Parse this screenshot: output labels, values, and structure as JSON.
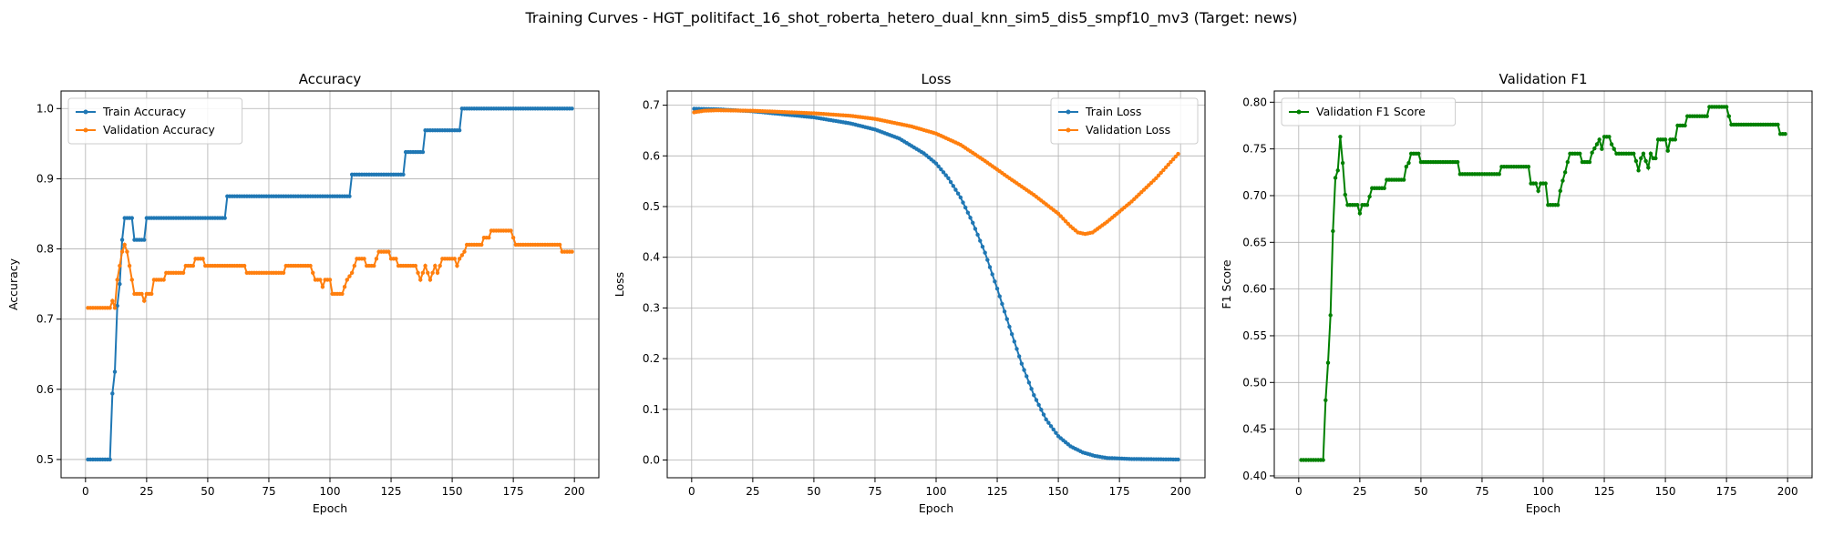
{
  "figure_title": "Training Curves - HGT_politifact_16_shot_roberta_hetero_dual_knn_sim5_dis5_smpf10_mv3 (Target: news)",
  "colors": {
    "train": "#1f77b4",
    "validation": "#ff7f0e",
    "f1": "#008000",
    "grid": "#b0b0b0"
  },
  "chart_data": [
    {
      "type": "line",
      "title": "Accuracy",
      "xlabel": "Epoch",
      "ylabel": "Accuracy",
      "xlim": [
        -10,
        210
      ],
      "ylim": [
        0.474,
        1.025
      ],
      "xticks": [
        0,
        25,
        50,
        75,
        100,
        125,
        150,
        175,
        200
      ],
      "yticks": [
        0.5,
        0.6,
        0.7,
        0.8,
        0.9,
        1.0
      ],
      "ytick_labels": [
        "0.5",
        "0.6",
        "0.7",
        "0.8",
        "0.9",
        "1.0"
      ],
      "grid": true,
      "legend": "upper-left",
      "series": [
        {
          "name": "Train Accuracy",
          "color_key": "train",
          "points": [
            [
              1,
              0.5
            ],
            [
              10,
              0.5
            ],
            [
              11,
              0.594
            ],
            [
              12,
              0.625
            ],
            [
              13,
              0.719
            ],
            [
              14,
              0.75
            ],
            [
              15,
              0.813
            ],
            [
              16,
              0.844
            ],
            [
              19,
              0.844
            ],
            [
              20,
              0.813
            ],
            [
              24,
              0.813
            ],
            [
              25,
              0.844
            ],
            [
              57,
              0.844
            ],
            [
              58,
              0.875
            ],
            [
              108,
              0.875
            ],
            [
              109,
              0.906
            ],
            [
              130,
              0.906
            ],
            [
              131,
              0.938
            ],
            [
              138,
              0.938
            ],
            [
              139,
              0.969
            ],
            [
              153,
              0.969
            ],
            [
              154,
              1.0
            ],
            [
              199,
              1.0
            ]
          ]
        },
        {
          "name": "Validation Accuracy",
          "color_key": "validation",
          "points": [
            [
              1,
              0.716
            ],
            [
              10,
              0.716
            ],
            [
              11,
              0.726
            ],
            [
              12,
              0.716
            ],
            [
              13,
              0.756
            ],
            [
              14,
              0.776
            ],
            [
              15,
              0.796
            ],
            [
              16,
              0.806
            ],
            [
              17,
              0.796
            ],
            [
              18,
              0.776
            ],
            [
              19,
              0.756
            ],
            [
              20,
              0.736
            ],
            [
              23,
              0.736
            ],
            [
              24,
              0.726
            ],
            [
              25,
              0.736
            ],
            [
              27,
              0.736
            ],
            [
              28,
              0.756
            ],
            [
              32,
              0.756
            ],
            [
              33,
              0.766
            ],
            [
              40,
              0.766
            ],
            [
              41,
              0.776
            ],
            [
              44,
              0.776
            ],
            [
              45,
              0.786
            ],
            [
              48,
              0.786
            ],
            [
              49,
              0.776
            ],
            [
              65,
              0.776
            ],
            [
              66,
              0.766
            ],
            [
              81,
              0.766
            ],
            [
              82,
              0.776
            ],
            [
              92,
              0.776
            ],
            [
              93,
              0.766
            ],
            [
              94,
              0.756
            ],
            [
              96,
              0.756
            ],
            [
              97,
              0.746
            ],
            [
              98,
              0.756
            ],
            [
              100,
              0.756
            ],
            [
              101,
              0.736
            ],
            [
              105,
              0.736
            ],
            [
              106,
              0.746
            ],
            [
              107,
              0.756
            ],
            [
              109,
              0.766
            ],
            [
              110,
              0.776
            ],
            [
              111,
              0.786
            ],
            [
              114,
              0.786
            ],
            [
              115,
              0.776
            ],
            [
              118,
              0.776
            ],
            [
              119,
              0.786
            ],
            [
              120,
              0.796
            ],
            [
              124,
              0.796
            ],
            [
              125,
              0.786
            ],
            [
              127,
              0.786
            ],
            [
              128,
              0.776
            ],
            [
              135,
              0.776
            ],
            [
              136,
              0.766
            ],
            [
              137,
              0.756
            ],
            [
              138,
              0.766
            ],
            [
              139,
              0.776
            ],
            [
              140,
              0.766
            ],
            [
              141,
              0.756
            ],
            [
              142,
              0.766
            ],
            [
              143,
              0.776
            ],
            [
              144,
              0.766
            ],
            [
              145,
              0.776
            ],
            [
              146,
              0.786
            ],
            [
              151,
              0.786
            ],
            [
              152,
              0.776
            ],
            [
              153,
              0.786
            ],
            [
              155,
              0.796
            ],
            [
              156,
              0.806
            ],
            [
              162,
              0.806
            ],
            [
              163,
              0.816
            ],
            [
              165,
              0.816
            ],
            [
              166,
              0.826
            ],
            [
              174,
              0.826
            ],
            [
              175,
              0.816
            ],
            [
              176,
              0.806
            ],
            [
              194,
              0.806
            ],
            [
              195,
              0.796
            ],
            [
              199,
              0.796
            ]
          ]
        }
      ]
    },
    {
      "type": "line",
      "title": "Loss",
      "xlabel": "Epoch",
      "ylabel": "Loss",
      "xlim": [
        -10,
        210
      ],
      "ylim": [
        -0.035,
        0.728
      ],
      "xticks": [
        0,
        25,
        50,
        75,
        100,
        125,
        150,
        175,
        200
      ],
      "yticks": [
        0.0,
        0.1,
        0.2,
        0.3,
        0.4,
        0.5,
        0.6,
        0.7
      ],
      "ytick_labels": [
        "0.0",
        "0.1",
        "0.2",
        "0.3",
        "0.4",
        "0.5",
        "0.6",
        "0.7"
      ],
      "grid": true,
      "legend": "upper-right",
      "series": [
        {
          "name": "Train Loss",
          "color_key": "train",
          "points": [
            [
              1,
              0.693
            ],
            [
              10,
              0.692
            ],
            [
              25,
              0.688
            ],
            [
              50,
              0.676
            ],
            [
              65,
              0.664
            ],
            [
              75,
              0.652
            ],
            [
              85,
              0.634
            ],
            [
              95,
              0.605
            ],
            [
              100,
              0.585
            ],
            [
              105,
              0.556
            ],
            [
              110,
              0.518
            ],
            [
              115,
              0.468
            ],
            [
              120,
              0.409
            ],
            [
              125,
              0.338
            ],
            [
              130,
              0.263
            ],
            [
              135,
              0.19
            ],
            [
              140,
              0.128
            ],
            [
              145,
              0.08
            ],
            [
              150,
              0.047
            ],
            [
              155,
              0.027
            ],
            [
              160,
              0.015
            ],
            [
              165,
              0.008
            ],
            [
              170,
              0.004
            ],
            [
              180,
              0.002
            ],
            [
              199,
              0.001
            ]
          ]
        },
        {
          "name": "Validation Loss",
          "color_key": "validation",
          "points": [
            [
              1,
              0.686
            ],
            [
              5,
              0.689
            ],
            [
              10,
              0.69
            ],
            [
              25,
              0.689
            ],
            [
              50,
              0.684
            ],
            [
              65,
              0.679
            ],
            [
              75,
              0.673
            ],
            [
              90,
              0.658
            ],
            [
              100,
              0.644
            ],
            [
              110,
              0.622
            ],
            [
              120,
              0.59
            ],
            [
              130,
              0.556
            ],
            [
              140,
              0.523
            ],
            [
              150,
              0.486
            ],
            [
              155,
              0.461
            ],
            [
              158,
              0.449
            ],
            [
              161,
              0.446
            ],
            [
              164,
              0.449
            ],
            [
              170,
              0.47
            ],
            [
              180,
              0.51
            ],
            [
              190,
              0.556
            ],
            [
              199,
              0.604
            ]
          ]
        }
      ]
    },
    {
      "type": "line",
      "title": "Validation F1",
      "xlabel": "Epoch",
      "ylabel": "F1 Score",
      "xlim": [
        -10,
        210
      ],
      "ylim": [
        0.398,
        0.812
      ],
      "xticks": [
        0,
        25,
        50,
        75,
        100,
        125,
        150,
        175,
        200
      ],
      "yticks": [
        0.4,
        0.45,
        0.5,
        0.55,
        0.6,
        0.65,
        0.7,
        0.75,
        0.8
      ],
      "ytick_labels": [
        "0.40",
        "0.45",
        "0.50",
        "0.55",
        "0.60",
        "0.65",
        "0.70",
        "0.75",
        "0.80"
      ],
      "grid": true,
      "legend": "upper-left",
      "series": [
        {
          "name": "Validation F1 Score",
          "color_key": "f1",
          "points": [
            [
              1,
              0.417
            ],
            [
              10,
              0.417
            ],
            [
              11,
              0.481
            ],
            [
              12,
              0.521
            ],
            [
              13,
              0.572
            ],
            [
              14,
              0.662
            ],
            [
              15,
              0.719
            ],
            [
              16,
              0.727
            ],
            [
              17,
              0.763
            ],
            [
              18,
              0.735
            ],
            [
              19,
              0.701
            ],
            [
              20,
              0.69
            ],
            [
              24,
              0.69
            ],
            [
              25,
              0.681
            ],
            [
              26,
              0.69
            ],
            [
              28,
              0.69
            ],
            [
              29,
              0.699
            ],
            [
              30,
              0.708
            ],
            [
              35,
              0.708
            ],
            [
              36,
              0.717
            ],
            [
              43,
              0.717
            ],
            [
              44,
              0.731
            ],
            [
              45,
              0.735
            ],
            [
              46,
              0.745
            ],
            [
              49,
              0.745
            ],
            [
              50,
              0.736
            ],
            [
              65,
              0.736
            ],
            [
              66,
              0.723
            ],
            [
              82,
              0.723
            ],
            [
              83,
              0.731
            ],
            [
              94,
              0.731
            ],
            [
              95,
              0.713
            ],
            [
              97,
              0.713
            ],
            [
              98,
              0.705
            ],
            [
              99,
              0.713
            ],
            [
              101,
              0.713
            ],
            [
              102,
              0.69
            ],
            [
              106,
              0.69
            ],
            [
              107,
              0.705
            ],
            [
              108,
              0.716
            ],
            [
              109,
              0.725
            ],
            [
              110,
              0.736
            ],
            [
              111,
              0.745
            ],
            [
              115,
              0.745
            ],
            [
              116,
              0.736
            ],
            [
              119,
              0.736
            ],
            [
              120,
              0.746
            ],
            [
              122,
              0.755
            ],
            [
              123,
              0.76
            ],
            [
              124,
              0.75
            ],
            [
              125,
              0.763
            ],
            [
              127,
              0.763
            ],
            [
              128,
              0.755
            ],
            [
              130,
              0.745
            ],
            [
              137,
              0.745
            ],
            [
              138,
              0.737
            ],
            [
              139,
              0.727
            ],
            [
              140,
              0.74
            ],
            [
              141,
              0.745
            ],
            [
              142,
              0.737
            ],
            [
              143,
              0.73
            ],
            [
              144,
              0.745
            ],
            [
              145,
              0.74
            ],
            [
              146,
              0.74
            ],
            [
              147,
              0.76
            ],
            [
              150,
              0.76
            ],
            [
              151,
              0.748
            ],
            [
              152,
              0.76
            ],
            [
              154,
              0.76
            ],
            [
              155,
              0.775
            ],
            [
              158,
              0.775
            ],
            [
              159,
              0.785
            ],
            [
              167,
              0.785
            ],
            [
              168,
              0.795
            ],
            [
              175,
              0.795
            ],
            [
              176,
              0.785
            ],
            [
              177,
              0.776
            ],
            [
              196,
              0.776
            ],
            [
              197,
              0.766
            ],
            [
              199,
              0.766
            ]
          ]
        }
      ]
    }
  ]
}
